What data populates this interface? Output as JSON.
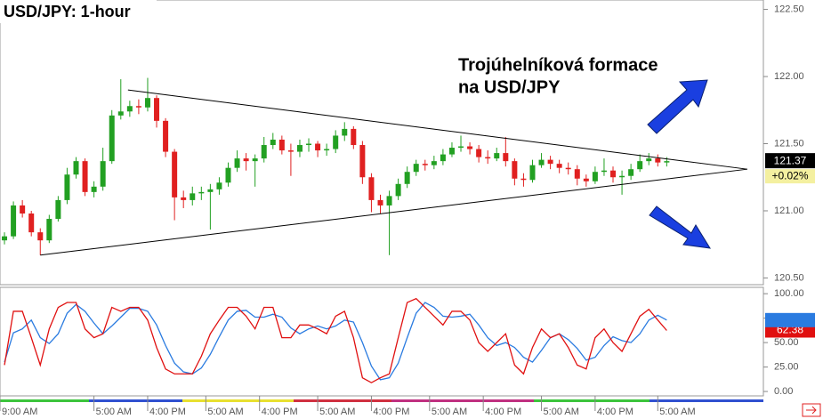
{
  "chart_data": {
    "type": "candlestick",
    "title": "USD/JPY: 1-hour",
    "annotation": [
      "Trojúhelníková formace",
      "na USD/JPY"
    ],
    "up_color": "#22a022",
    "down_color": "#e02020",
    "xlim": [
      -0.5,
      84.8
    ],
    "ylim": [
      120.45,
      122.57
    ],
    "yticks": [
      {
        "value": 122.5,
        "label": "122.50"
      },
      {
        "value": 122,
        "label": "122.00"
      },
      {
        "value": 121.5,
        "label": "121.50"
      },
      {
        "value": 121,
        "label": "121.00"
      },
      {
        "value": 120.5,
        "label": "120.50"
      }
    ],
    "xlabels": [
      {
        "index": -0.5,
        "label": "9:00 AM"
      },
      {
        "index": 10,
        "label": "5:00 AM"
      },
      {
        "index": 16,
        "label": "4:00 PM"
      },
      {
        "index": 22.5,
        "label": "5:00 AM"
      },
      {
        "index": 28.5,
        "label": "4:00 PM"
      },
      {
        "index": 35,
        "label": "5:00 AM"
      },
      {
        "index": 41,
        "label": "4:00 PM"
      },
      {
        "index": 47.5,
        "label": "5:00 AM"
      },
      {
        "index": 53.5,
        "label": "4:00 PM"
      },
      {
        "index": 60,
        "label": "5:00 AM"
      },
      {
        "index": 66,
        "label": "4:00 PM"
      },
      {
        "index": 73,
        "label": "5:00 AM"
      }
    ],
    "open": [
      120.78,
      120.81,
      121.04,
      120.98,
      120.84,
      120.78,
      120.94,
      121.08,
      121.27,
      121.37,
      121.14,
      121.18,
      121.37,
      121.71,
      121.74,
      121.78,
      121.77,
      121.84,
      121.67,
      121.44,
      121.1,
      121.08,
      121.13,
      121.14,
      121.16,
      121.21,
      121.32,
      121.39,
      121.37,
      121.39,
      121.49,
      121.53,
      121.45,
      121.44,
      121.49,
      121.5,
      121.45,
      121.46,
      121.56,
      121.61,
      121.49,
      121.25,
      121.08,
      121.04,
      121.11,
      121.2,
      121.29,
      121.35,
      121.34,
      121.37,
      121.42,
      121.47,
      121.48,
      121.46,
      121.4,
      121.39,
      121.43,
      121.37,
      121.24,
      121.23,
      121.34,
      121.38,
      121.35,
      121.32,
      121.31,
      121.24,
      121.22,
      121.29,
      121.3,
      121.25,
      121.26,
      121.31,
      121.37,
      121.39,
      121.36
    ],
    "high": [
      120.84,
      121.07,
      121.08,
      121.0,
      120.87,
      120.97,
      121.11,
      121.32,
      121.4,
      121.39,
      121.22,
      121.47,
      121.75,
      121.98,
      121.82,
      121.83,
      121.99,
      121.86,
      121.69,
      121.46,
      121.15,
      121.18,
      121.18,
      121.2,
      121.25,
      121.36,
      121.45,
      121.43,
      121.42,
      121.55,
      121.58,
      121.56,
      121.5,
      121.53,
      121.54,
      121.52,
      121.5,
      121.6,
      121.66,
      121.63,
      121.52,
      121.28,
      121.12,
      121.15,
      121.24,
      121.33,
      121.38,
      121.38,
      121.41,
      121.46,
      121.51,
      121.56,
      121.51,
      121.49,
      121.45,
      121.47,
      121.55,
      121.39,
      121.28,
      121.38,
      121.43,
      121.41,
      121.38,
      121.36,
      121.34,
      121.27,
      121.33,
      121.39,
      121.33,
      121.3,
      121.35,
      121.42,
      121.43,
      121.42,
      121.4
    ],
    "low": [
      120.75,
      120.79,
      120.95,
      120.81,
      120.67,
      120.76,
      120.92,
      121.05,
      121.24,
      121.11,
      121.1,
      121.15,
      121.35,
      121.68,
      121.7,
      121.72,
      121.74,
      121.62,
      121.4,
      120.93,
      121.02,
      121.04,
      121.08,
      120.86,
      121.12,
      121.18,
      121.29,
      121.3,
      121.18,
      121.36,
      121.46,
      121.42,
      121.26,
      121.4,
      121.44,
      121.4,
      121.41,
      121.43,
      121.52,
      121.46,
      121.2,
      120.99,
      120.98,
      120.67,
      121.08,
      121.17,
      121.26,
      121.3,
      121.31,
      121.34,
      121.4,
      121.44,
      121.42,
      121.36,
      121.35,
      121.37,
      121.33,
      121.19,
      121.18,
      121.21,
      121.32,
      121.31,
      121.28,
      121.27,
      121.19,
      121.18,
      121.2,
      121.26,
      121.21,
      121.12,
      121.23,
      121.29,
      121.34,
      121.33,
      121.33
    ],
    "close": [
      120.81,
      121.04,
      120.98,
      120.84,
      120.78,
      120.94,
      121.08,
      121.27,
      121.37,
      121.14,
      121.18,
      121.37,
      121.71,
      121.74,
      121.78,
      121.77,
      121.84,
      121.67,
      121.44,
      121.1,
      121.08,
      121.13,
      121.14,
      121.16,
      121.21,
      121.32,
      121.39,
      121.37,
      121.39,
      121.49,
      121.53,
      121.45,
      121.44,
      121.49,
      121.5,
      121.45,
      121.46,
      121.56,
      121.61,
      121.49,
      121.25,
      121.08,
      121.04,
      121.11,
      121.2,
      121.29,
      121.35,
      121.34,
      121.37,
      121.42,
      121.47,
      121.48,
      121.46,
      121.4,
      121.39,
      121.43,
      121.37,
      121.24,
      121.23,
      121.34,
      121.38,
      121.35,
      121.32,
      121.31,
      121.24,
      121.22,
      121.29,
      121.3,
      121.25,
      121.26,
      121.31,
      121.37,
      121.39,
      121.36,
      121.37
    ],
    "change_label": "+0.02%",
    "trendlines": [
      {
        "x": [
          13.8,
          83
        ],
        "y": [
          121.9,
          121.31
        ]
      },
      {
        "x": [
          4,
          83
        ],
        "y": [
          120.67,
          121.31
        ]
      }
    ],
    "oscillator": {
      "ylim": [
        -4.5,
        106.5
      ],
      "yticks": [
        {
          "value": 100,
          "label": "100.00"
        },
        {
          "value": 75,
          "label": "75.00"
        },
        {
          "value": 50,
          "label": "50.00"
        },
        {
          "value": 25,
          "label": "25.00"
        },
        {
          "value": 0,
          "label": "0.00"
        }
      ],
      "series": [
        {
          "color": "#e01010",
          "values": [
            27,
            82,
            82,
            55,
            27,
            64,
            86,
            91,
            91,
            64,
            55,
            59,
            86,
            82,
            86,
            86,
            73,
            45,
            23,
            18,
            18,
            18,
            36,
            59,
            73,
            86,
            86,
            77,
            64,
            86,
            86,
            55,
            55,
            68,
            68,
            64,
            59,
            77,
            82,
            55,
            14,
            9,
            14,
            18,
            55,
            91,
            95,
            86,
            77,
            68,
            82,
            82,
            73,
            50,
            41,
            50,
            59,
            27,
            18,
            45,
            64,
            55,
            59,
            45,
            27,
            23,
            55,
            64,
            50,
            41,
            59,
            77,
            84,
            73,
            62.38
          ]
        },
        {
          "color": "#2a7be0",
          "values": [
            30,
            60,
            64,
            73,
            55,
            49,
            59,
            80,
            89,
            82,
            70,
            59,
            67,
            76,
            85,
            85,
            82,
            68,
            47,
            29,
            20,
            18,
            24,
            38,
            56,
            73,
            82,
            83,
            76,
            76,
            79,
            76,
            65,
            59,
            64,
            67,
            64,
            67,
            73,
            71,
            50,
            26,
            12,
            14,
            29,
            55,
            80,
            91,
            86,
            77,
            76,
            77,
            79,
            68,
            55,
            47,
            50,
            45,
            35,
            30,
            42,
            55,
            59,
            53,
            44,
            32,
            35,
            47,
            56,
            52,
            50,
            59,
            73,
            78,
            73
          ]
        }
      ]
    }
  }
}
